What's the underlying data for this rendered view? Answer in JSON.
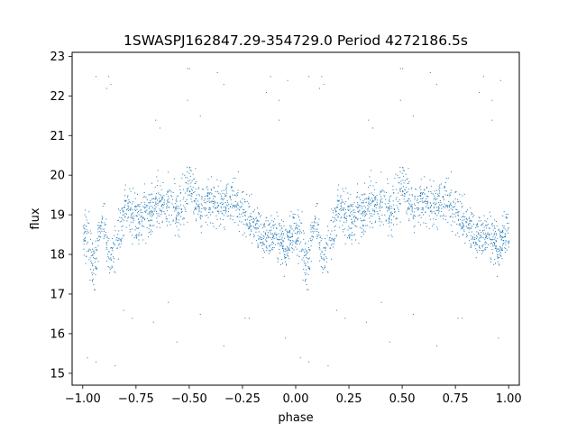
{
  "chart_data": {
    "type": "scatter",
    "title": "1SWASPJ162847.29-354729.0 Period 4272186.5s",
    "xlabel": "phase",
    "ylabel": "flux",
    "xlim": [
      -1.05,
      1.05
    ],
    "ylim": [
      14.7,
      23.1
    ],
    "xticks": [
      -1.0,
      -0.75,
      -0.5,
      -0.25,
      0.0,
      0.25,
      0.5,
      0.75,
      1.0
    ],
    "xtick_labels": [
      "−1.00",
      "−0.75",
      "−0.50",
      "−0.25",
      "0.00",
      "0.25",
      "0.50",
      "0.75",
      "1.00"
    ],
    "yticks": [
      15,
      16,
      17,
      18,
      19,
      20,
      21,
      22,
      23
    ],
    "ytick_labels": [
      "15",
      "16",
      "17",
      "18",
      "19",
      "20",
      "21",
      "22",
      "23"
    ],
    "grid": false,
    "legend": "none",
    "marker_color": "#1f77b4",
    "series": [
      {
        "phase_profile": {
          "x": [
            0.0,
            0.025,
            0.05,
            0.075,
            0.1,
            0.125,
            0.15,
            0.175,
            0.2,
            0.25,
            0.3,
            0.35,
            0.4,
            0.45,
            0.5,
            0.55,
            0.6,
            0.65,
            0.7,
            0.75,
            0.8,
            0.85,
            0.9,
            0.95,
            1.0
          ],
          "median_flux": [
            18.6,
            18.3,
            17.6,
            18.6,
            18.8,
            17.9,
            18.0,
            18.6,
            19.2,
            18.9,
            19.0,
            19.3,
            19.3,
            19.0,
            19.8,
            19.1,
            19.4,
            19.2,
            19.4,
            19.2,
            18.8,
            18.5,
            18.6,
            18.2,
            18.6
          ],
          "scatter": [
            0.35,
            0.5,
            0.5,
            0.4,
            0.35,
            0.5,
            0.5,
            0.4,
            0.4,
            0.4,
            0.4,
            0.45,
            0.45,
            0.45,
            0.5,
            0.4,
            0.4,
            0.45,
            0.45,
            0.4,
            0.4,
            0.4,
            0.4,
            0.45,
            0.4
          ]
        },
        "outliers": {
          "x": [
            -0.94,
            -0.88,
            -0.87,
            -0.64,
            -0.51,
            -0.5,
            -0.45,
            -0.34,
            -0.22,
            -0.12,
            -0.08,
            -0.05,
            0.06,
            0.11,
            0.15,
            0.19,
            0.23,
            0.34,
            0.49,
            0.55,
            0.63,
            0.66,
            0.76,
            0.86,
            0.92,
            0.96,
            0.33,
            0.44,
            -0.6,
            0.02
          ],
          "y": [
            15.3,
            22.5,
            22.3,
            21.2,
            21.9,
            22.7,
            16.5,
            22.3,
            16.4,
            22.5,
            21.9,
            15.9,
            22.5,
            22.2,
            15.2,
            16.6,
            16.4,
            21.4,
            22.7,
            21.5,
            22.6,
            15.7,
            16.4,
            22.1,
            21.4,
            22.4,
            16.3,
            15.8,
            16.8,
            15.4
          ]
        }
      }
    ]
  }
}
